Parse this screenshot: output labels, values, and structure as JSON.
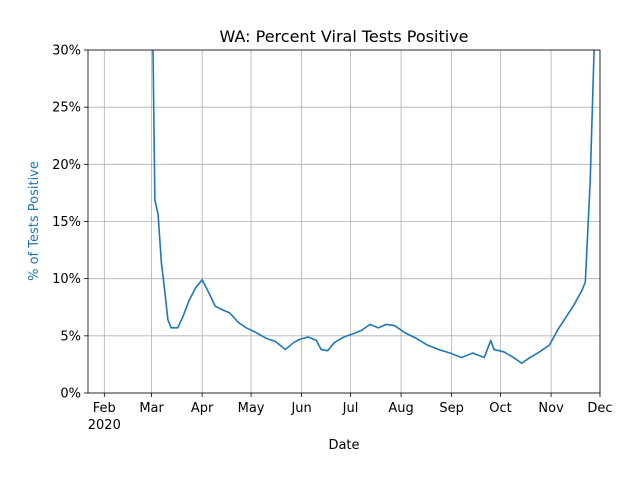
{
  "chart_data": {
    "type": "line",
    "title": "WA: Percent Viral Tests Positive",
    "xlabel": "Date",
    "ylabel": "% of Tests Positive",
    "ylabel_color": "#1f77b4",
    "xtick_year": "2020",
    "x": [
      "2020-03-01",
      "2020-03-03",
      "2020-03-05",
      "2020-03-07",
      "2020-03-09",
      "2020-03-11",
      "2020-03-13",
      "2020-03-17",
      "2020-03-20",
      "2020-03-24",
      "2020-03-28",
      "2020-04-01",
      "2020-04-05",
      "2020-04-09",
      "2020-04-13",
      "2020-04-18",
      "2020-04-23",
      "2020-04-28",
      "2020-05-04",
      "2020-05-10",
      "2020-05-16",
      "2020-05-22",
      "2020-05-27",
      "2020-05-31",
      "2020-06-05",
      "2020-06-10",
      "2020-06-13",
      "2020-06-17",
      "2020-06-21",
      "2020-06-27",
      "2020-07-03",
      "2020-07-08",
      "2020-07-13",
      "2020-07-18",
      "2020-07-23",
      "2020-07-28",
      "2020-08-03",
      "2020-08-10",
      "2020-08-17",
      "2020-08-24",
      "2020-08-31",
      "2020-09-07",
      "2020-09-14",
      "2020-09-21",
      "2020-09-25",
      "2020-09-27",
      "2020-10-03",
      "2020-10-09",
      "2020-10-14",
      "2020-10-19",
      "2020-10-25",
      "2020-10-31",
      "2020-11-05",
      "2020-11-10",
      "2020-11-15",
      "2020-11-20",
      "2020-11-22",
      "2020-11-25",
      "2020-11-28"
    ],
    "series": [
      {
        "name": "% of Tests Positive",
        "color": "#1f77b4",
        "values": [
          40,
          16.9,
          15.6,
          11.4,
          9.0,
          6.4,
          5.7,
          5.7,
          6.6,
          8.1,
          9.2,
          9.9,
          8.8,
          7.6,
          7.3,
          7.0,
          6.2,
          5.7,
          5.3,
          4.8,
          4.5,
          3.8,
          4.4,
          4.7,
          4.9,
          4.6,
          3.8,
          3.7,
          4.4,
          4.9,
          5.2,
          5.5,
          6.0,
          5.7,
          6.0,
          5.9,
          5.3,
          4.8,
          4.2,
          3.8,
          3.5,
          3.1,
          3.5,
          3.1,
          4.6,
          3.8,
          3.6,
          3.1,
          2.6,
          3.1,
          3.6,
          4.2,
          5.5,
          6.6,
          7.7,
          9.0,
          9.7,
          18.6,
          33
        ]
      }
    ],
    "xlim": [
      "2020-01-22",
      "2020-12-01"
    ],
    "xticks": [
      {
        "value": "2020-02-01",
        "label": "Feb"
      },
      {
        "value": "2020-03-01",
        "label": "Mar"
      },
      {
        "value": "2020-04-01",
        "label": "Apr"
      },
      {
        "value": "2020-05-01",
        "label": "May"
      },
      {
        "value": "2020-06-01",
        "label": "Jun"
      },
      {
        "value": "2020-07-01",
        "label": "Jul"
      },
      {
        "value": "2020-08-01",
        "label": "Aug"
      },
      {
        "value": "2020-09-01",
        "label": "Sep"
      },
      {
        "value": "2020-10-01",
        "label": "Oct"
      },
      {
        "value": "2020-11-01",
        "label": "Nov"
      },
      {
        "value": "2020-12-01",
        "label": "Dec"
      }
    ],
    "ylim": [
      0,
      30
    ],
    "yticks": [
      {
        "value": 0,
        "label": "0%"
      },
      {
        "value": 5,
        "label": "5%"
      },
      {
        "value": 10,
        "label": "10%"
      },
      {
        "value": 15,
        "label": "15%"
      },
      {
        "value": 20,
        "label": "20%"
      },
      {
        "value": 25,
        "label": "25%"
      },
      {
        "value": 30,
        "label": "30%"
      }
    ],
    "grid": true
  }
}
